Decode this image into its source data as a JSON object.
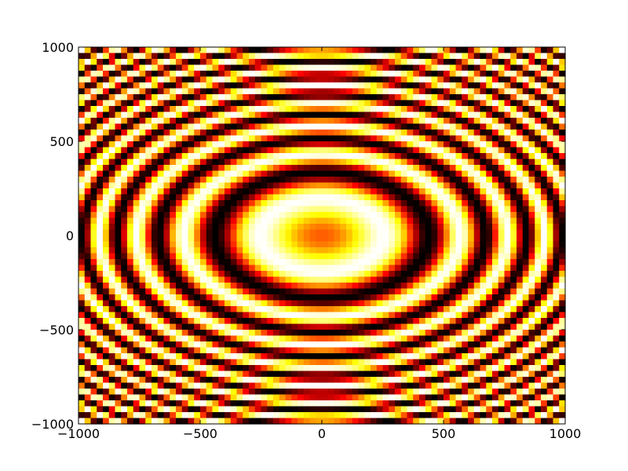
{
  "chart_data": {
    "type": "heatmap",
    "title": "",
    "xlabel": "",
    "ylabel": "",
    "xlim": [
      -1000,
      1000
    ],
    "ylim": [
      -1000,
      1000
    ],
    "xticks": [
      -1000,
      -500,
      0,
      500,
      1000
    ],
    "yticks": [
      -1000,
      -500,
      0,
      500,
      1000
    ],
    "xtick_labels": [
      "−1000",
      "−500",
      "0",
      "500",
      "1000"
    ],
    "ytick_labels": [
      "−1000",
      "−500",
      "0",
      "500",
      "1000"
    ],
    "grid": false,
    "colormap": "hot",
    "colormap_stops": [
      "#000000",
      "#7f0000",
      "#ff0000",
      "#ff7f00",
      "#ffff00",
      "#ffffff"
    ],
    "function": "sin(x^2 + 2*y^2) evaluated on a coarse grid over x, y in [-1000, 1000]; data aspect stretched horizontally",
    "cells_x": 80,
    "cells_y": 64
  }
}
